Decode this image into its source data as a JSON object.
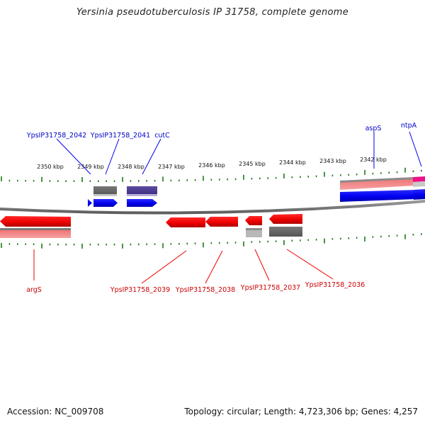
{
  "header": {
    "title": "Yersinia pseudotuberculosis IP 31758, complete genome"
  },
  "footer": {
    "accession": "Accession: NC_009708",
    "summary": "Topology: circular; Length: 4,723,306 bp; Genes: 4,257"
  },
  "colors": {
    "forward_gene": "#0000ee",
    "forward_label": "#0000cc",
    "reverse_gene": "#ee0000",
    "reverse_label": "#cc0000",
    "tick": "#1a7a1a",
    "backbone": "#808080",
    "misc_feature": "#ee1188"
  },
  "scale": {
    "ticks": [
      "2350 kbp",
      "2349 kbp",
      "2348 kbp",
      "2347 kbp",
      "2346 kbp",
      "2345 kbp",
      "2344 kbp",
      "2343 kbp",
      "2342 kbp"
    ]
  },
  "labels": {
    "forward": [
      "YpsIP31758_2042",
      "YpsIP31758_2041",
      "cutC",
      "aspS",
      "ntpA"
    ],
    "reverse": [
      "argS",
      "YpsIP31758_2039",
      "YpsIP31758_2038",
      "YpsIP31758_2037",
      "YpsIP31758_2036"
    ]
  }
}
